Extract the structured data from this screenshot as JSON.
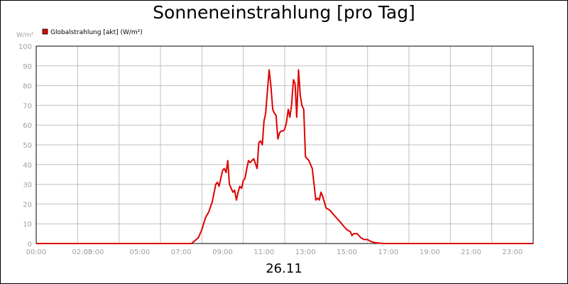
{
  "title": "Sonneneinstrahlung [pro Tag]",
  "footer": "26.11",
  "colors": {
    "series": "#e00000",
    "grid": "#c0c0c0",
    "axis_text": "#a0a0a0",
    "plot_border": "#000000"
  },
  "chart_data": {
    "type": "line",
    "title": "Sonneneinstrahlung [pro Tag]",
    "ylabel_unit": "W/m²",
    "ylim": [
      0,
      100
    ],
    "yticks": [
      0,
      10,
      20,
      30,
      40,
      50,
      60,
      70,
      80,
      90,
      100
    ],
    "xlim": [
      0,
      24
    ],
    "xtick_hours": [
      0,
      2,
      3,
      5,
      7,
      9,
      11,
      13,
      15,
      17,
      19,
      21,
      23
    ],
    "xtick_labels": [
      "00:00",
      "02:00",
      "03:00",
      "05:00",
      "07:00",
      "09:00",
      "11:00",
      "13:00",
      "15:00",
      "17:00",
      "19:00",
      "21:00",
      "23:00"
    ],
    "grid": true,
    "legend": "top-left",
    "series": [
      {
        "name": "Globalstrahlung [akt] (W/m²)",
        "color": "#e00000",
        "x": [
          0,
          7.5,
          7.83,
          8.0,
          8.17,
          8.33,
          8.5,
          8.67,
          8.75,
          8.83,
          9.0,
          9.08,
          9.17,
          9.25,
          9.33,
          9.5,
          9.58,
          9.67,
          9.75,
          9.83,
          9.92,
          10.0,
          10.08,
          10.17,
          10.25,
          10.33,
          10.42,
          10.5,
          10.67,
          10.75,
          10.83,
          10.92,
          11.0,
          11.08,
          11.17,
          11.25,
          11.33,
          11.42,
          11.5,
          11.58,
          11.67,
          11.75,
          11.83,
          11.92,
          12.0,
          12.08,
          12.17,
          12.25,
          12.33,
          12.42,
          12.5,
          12.58,
          12.67,
          12.75,
          12.83,
          12.92,
          13.0,
          13.17,
          13.33,
          13.5,
          13.58,
          13.67,
          13.75,
          13.83,
          14.0,
          14.17,
          14.33,
          14.5,
          14.67,
          14.83,
          15.0,
          15.17,
          15.25,
          15.33,
          15.5,
          15.67,
          15.83,
          16.0,
          16.17,
          16.33,
          16.5,
          16.67,
          16.83,
          17.0,
          24
        ],
        "values": [
          0,
          0,
          3,
          7,
          13,
          16,
          21,
          30,
          31,
          29,
          37,
          38,
          36,
          42,
          30,
          26,
          27,
          22,
          26,
          29,
          28,
          32,
          33,
          38,
          42,
          41,
          42,
          43,
          38,
          51,
          52,
          50,
          62,
          66,
          78,
          88,
          80,
          68,
          66,
          65,
          53,
          56,
          57,
          57,
          58,
          61,
          68,
          64,
          70,
          83,
          81,
          64,
          88,
          75,
          70,
          68,
          44,
          42,
          38,
          22,
          23,
          22,
          26,
          24,
          18,
          17,
          15,
          13,
          11,
          9,
          7,
          6,
          4,
          5,
          5,
          3,
          2,
          2,
          1,
          0.5,
          0.3,
          0.1,
          0,
          0,
          0
        ]
      }
    ]
  }
}
